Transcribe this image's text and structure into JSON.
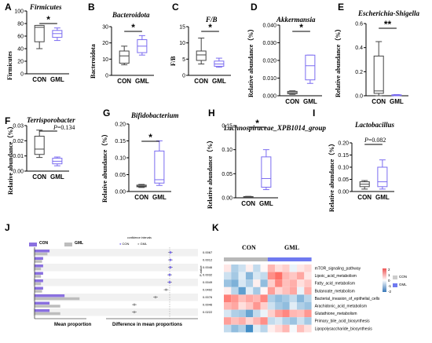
{
  "colors": {
    "con": "#444444",
    "gml": "#7b6cf0",
    "bar_con": "#8a70e0",
    "bar_gml": "#bdbdbd"
  },
  "panels": {
    "A": {
      "letter": "A",
      "title": "Firmicutes",
      "ylabel": "Firmicutes",
      "sig": "*"
    },
    "B": {
      "letter": "B",
      "title": "Bacteroidota",
      "ylabel": "Bacteroidota",
      "sig": "*"
    },
    "C": {
      "letter": "C",
      "title": "F/B",
      "ylabel": "F/B",
      "sig": "*"
    },
    "D": {
      "letter": "D",
      "title": "Akkermansia",
      "ylabel": "Relative abundance（%）",
      "sig": "*"
    },
    "E": {
      "letter": "E",
      "title": "Escherichia-Shigella",
      "ylabel": "Relative abundance（%）",
      "sig": "**"
    },
    "F": {
      "letter": "F",
      "title": "Terrisporobacter",
      "ylabel": "Relative abundance（%）",
      "p_prefix": "P",
      "p_value": "=0.134"
    },
    "G": {
      "letter": "G",
      "title": "Bifidobacterium",
      "ylabel": "Relative abundance（%）",
      "sig": "*"
    },
    "H": {
      "letter": "H",
      "title": "Lachnospiraceae_XPB1014_group",
      "ylabel": "Relative abundance（%）",
      "sig": "*"
    },
    "I": {
      "letter": "I",
      "title": "Lactobacillus",
      "ylabel": "Relative abundance（%）",
      "p_prefix": "P",
      "p_value": "=0.082"
    },
    "J": {
      "letter": "J",
      "legend_con": "CON",
      "legend_gml": "GML",
      "ci_title": "confidence intervals",
      "xlabel_left": "Mean proportion",
      "xlabel_right": "Difference in mean proportions",
      "pvalue_label": "P-value"
    },
    "K": {
      "letter": "K",
      "group1": "CON",
      "group2": "GML",
      "legend_con": "CON",
      "legend_gml": "GML"
    }
  },
  "x_labels": {
    "con": "CON",
    "gml": "GML"
  },
  "chart_data": [
    {
      "panel": "A",
      "type": "box",
      "title": "Firmicutes",
      "ylabel": "Firmicutes",
      "ylim": [
        0,
        100
      ],
      "yticks": [
        0,
        20,
        40,
        60,
        80,
        100
      ],
      "categories": [
        "CON",
        "GML"
      ],
      "boxes": [
        {
          "min": 40,
          "q1": 51,
          "median": 74,
          "q3": 77,
          "max": 77
        },
        {
          "min": 53,
          "q1": 58,
          "median": 64,
          "q3": 69,
          "max": 73
        }
      ]
    },
    {
      "panel": "B",
      "type": "box",
      "title": "Bacteroidota",
      "ylabel": "Bacteroidota",
      "ylim": [
        0,
        30
      ],
      "yticks": [
        0,
        10,
        20,
        30
      ],
      "categories": [
        "CON",
        "GML"
      ],
      "boxes": [
        {
          "min": 6.5,
          "q1": 7.5,
          "median": 12,
          "q3": 15,
          "max": 18
        },
        {
          "min": 12.5,
          "q1": 14,
          "median": 18,
          "q3": 22,
          "max": 24.5
        }
      ]
    },
    {
      "panel": "C",
      "type": "box",
      "title": "F/B",
      "ylabel": "F/B",
      "ylim": [
        0,
        15
      ],
      "yticks": [
        0,
        5,
        10,
        15
      ],
      "categories": [
        "CON",
        "GML"
      ],
      "boxes": [
        {
          "min": 3.5,
          "q1": 4.6,
          "median": 6.3,
          "q3": 7.5,
          "max": 11.5
        },
        {
          "min": 2.5,
          "q1": 2.8,
          "median": 3.5,
          "q3": 4.4,
          "max": 5.3
        }
      ]
    },
    {
      "panel": "D",
      "type": "box",
      "title": "Akkermansia",
      "ylabel": "Relative abundance（%）",
      "ylim": [
        0,
        0.04
      ],
      "yticks": [
        0.0,
        0.01,
        0.02,
        0.03,
        0.04
      ],
      "yticklabels": [
        "0.000",
        "0.010",
        "0.020",
        "0.030",
        "0.040"
      ],
      "categories": [
        "CON",
        "GML"
      ],
      "boxes": [
        {
          "min": 0.0008,
          "q1": 0.0012,
          "median": 0.0018,
          "q3": 0.0025,
          "max": 0.0028
        },
        {
          "min": 0.007,
          "q1": 0.009,
          "median": 0.017,
          "q3": 0.023,
          "max": 0.023
        }
      ]
    },
    {
      "panel": "E",
      "type": "box",
      "title": "Escherichia-Shigella",
      "ylabel": "Relative abundance（%）",
      "ylim": [
        0,
        0.6
      ],
      "yticks": [
        0,
        0.2,
        0.4,
        0.6
      ],
      "yticklabels": [
        "0.0",
        "0.2",
        "0.4",
        "0.6"
      ],
      "categories": [
        "CON",
        "GML"
      ],
      "boxes": [
        {
          "min": 0.0,
          "q1": 0.02,
          "median": 0.04,
          "q3": 0.33,
          "max": 0.45
        },
        {
          "min": 0.0,
          "q1": 0.004,
          "median": 0.006,
          "q3": 0.008,
          "max": 0.01
        }
      ]
    },
    {
      "panel": "F",
      "type": "box",
      "title": "Terrisporobacter",
      "ylabel": "Relative abundance（%）",
      "ylim": [
        0,
        0.03
      ],
      "yticks": [
        0,
        0.01,
        0.02,
        0.03
      ],
      "yticklabels": [
        "0.00",
        "0.01",
        "0.02",
        "0.03"
      ],
      "categories": [
        "CON",
        "GML"
      ],
      "boxes": [
        {
          "min": 0.009,
          "q1": 0.011,
          "median": 0.0145,
          "q3": 0.023,
          "max": 0.027
        },
        {
          "min": 0.0035,
          "q1": 0.0048,
          "median": 0.0065,
          "q3": 0.0085,
          "max": 0.0093
        }
      ]
    },
    {
      "panel": "G",
      "type": "box",
      "title": "Bifidobacterium",
      "ylabel": "Relative abundance（%）",
      "ylim": [
        0,
        0.2
      ],
      "yticks": [
        0,
        0.05,
        0.1,
        0.15,
        0.2
      ],
      "yticklabels": [
        "0.00",
        "0.05",
        "0.10",
        "0.15",
        "0.20"
      ],
      "categories": [
        "CON",
        "GML"
      ],
      "boxes": [
        {
          "min": 0.012,
          "q1": 0.014,
          "median": 0.016,
          "q3": 0.019,
          "max": 0.021
        },
        {
          "min": 0.018,
          "q1": 0.025,
          "median": 0.035,
          "q3": 0.12,
          "max": 0.15
        }
      ]
    },
    {
      "panel": "H",
      "type": "box",
      "title": "Lachnospiraceae_XPB1014_group",
      "ylabel": "Relative abundance（%）",
      "ylim": [
        0,
        0.15
      ],
      "yticks": [
        0,
        0.05,
        0.1,
        0.15
      ],
      "yticklabels": [
        "0.00",
        "0.05",
        "0.10",
        "0.15"
      ],
      "categories": [
        "CON",
        "GML"
      ],
      "boxes": [
        {
          "min": 0.001,
          "q1": 0.0015,
          "median": 0.002,
          "q3": 0.0025,
          "max": 0.003
        },
        {
          "min": 0.017,
          "q1": 0.022,
          "median": 0.04,
          "q3": 0.085,
          "max": 0.1
        }
      ]
    },
    {
      "panel": "I",
      "type": "box",
      "title": "Lactobacillus",
      "ylabel": "Relative abundance（%）",
      "ylim": [
        0,
        0.2
      ],
      "yticks": [
        0,
        0.05,
        0.1,
        0.15,
        0.2
      ],
      "yticklabels": [
        "0.00",
        "0.05",
        "0.10",
        "0.15",
        "0.20"
      ],
      "categories": [
        "CON",
        "GML"
      ],
      "boxes": [
        {
          "min": 0.01,
          "q1": 0.02,
          "median": 0.03,
          "q3": 0.04,
          "max": 0.045
        },
        {
          "min": 0.01,
          "q1": 0.02,
          "median": 0.04,
          "q3": 0.1,
          "max": 0.13
        }
      ]
    },
    {
      "panel": "J",
      "type": "bar",
      "categories_count": 9,
      "con": [
        0.07,
        0.04,
        0.04,
        0.04,
        0.04,
        0.04,
        0.14,
        0.07,
        0.07
      ],
      "gml": [
        0.06,
        0.035,
        0.03,
        0.03,
        0.03,
        0.035,
        0.21,
        0.12,
        0.12
      ],
      "diff": [
        0.001,
        0.001,
        0.001,
        0.0,
        0.0,
        -0.005,
        -0.02,
        -0.05,
        -0.05
      ],
      "pvalues": [
        "0.0067",
        "0.0012",
        "0.0046",
        "0.0032",
        "0.0049",
        "0.0492",
        "0.0076",
        "0.0046",
        "0.0222"
      ]
    },
    {
      "panel": "K",
      "type": "heatmap",
      "groups": [
        "CON",
        "GML"
      ],
      "legend_ticks": [
        "2",
        "1",
        "0",
        "-1",
        "-2"
      ],
      "rows": [
        "mTOR_signaling_pathway",
        "Lipoic_acid_metabolism",
        "Fatty_acid_metabolism",
        "Butanoate_metabolism",
        "Bacterial_invasion_of_epithelial_cells",
        "Arachidonic_acid_metabolism",
        "Glutathione_metabolism",
        "Primary_bile_acid_biosynthesis",
        "Lipopolysaccharide_biosynthesis"
      ],
      "values": [
        [
          0.3,
          -0.8,
          -0.5,
          0.2,
          -0.6,
          0.1,
          0.9,
          0.4,
          0.6,
          -0.2,
          0.3,
          0.5
        ],
        [
          -0.5,
          -0.9,
          -0.3,
          -1.2,
          -0.4,
          -0.6,
          1.4,
          1.8,
          0.9,
          0.7,
          1.1,
          0.3
        ],
        [
          -1.0,
          -1.3,
          -0.4,
          -0.8,
          0.2,
          -1.1,
          0.6,
          1.5,
          0.8,
          1.0,
          0.4,
          0.7
        ],
        [
          0.2,
          -0.7,
          -1.6,
          -0.3,
          -0.9,
          0.1,
          1.2,
          0.5,
          0.8,
          1.1,
          -0.2,
          1.0
        ],
        [
          1.6,
          1.3,
          0.8,
          1.1,
          0.9,
          1.5,
          -0.8,
          -1.1,
          -0.9,
          -0.6,
          -1.2,
          -0.7
        ],
        [
          0.9,
          1.1,
          0.4,
          0.7,
          1.3,
          0.6,
          -0.5,
          -0.9,
          -1.1,
          -0.3,
          -0.8,
          -1.0
        ],
        [
          -0.4,
          -0.8,
          -0.9,
          -1.5,
          -0.6,
          -0.2,
          0.6,
          1.2,
          1.5,
          0.9,
          0.8,
          1.3
        ],
        [
          1.2,
          0.8,
          1.0,
          0.5,
          0.9,
          1.4,
          -0.6,
          -0.4,
          -0.8,
          -1.0,
          -0.5,
          -0.9
        ],
        [
          -0.6,
          -1.1,
          -0.8,
          -1.9,
          -0.3,
          -0.7,
          0.2,
          0.5,
          0.9,
          -0.1,
          0.8,
          0.4
        ]
      ]
    }
  ]
}
